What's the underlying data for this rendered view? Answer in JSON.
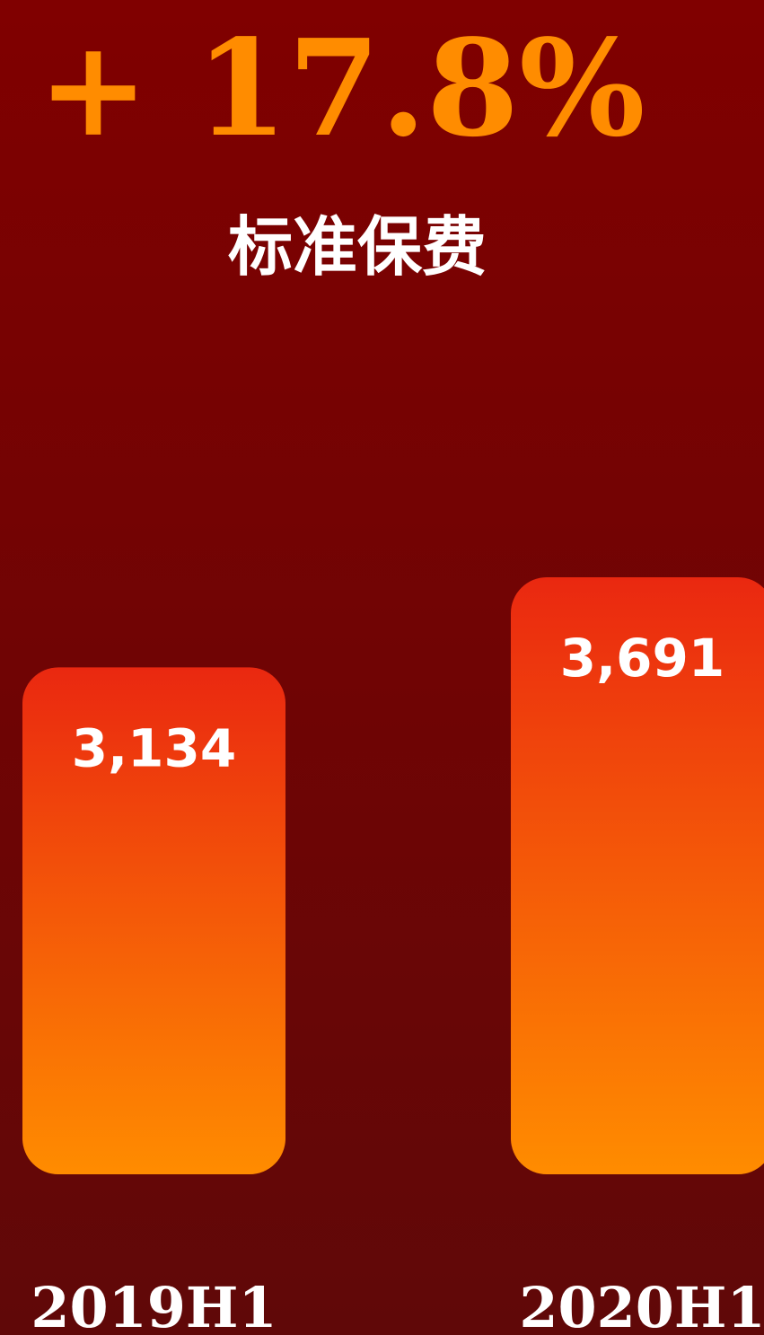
{
  "chart_data": {
    "type": "bar",
    "headline": "+ 17.8%",
    "title": "标准保费",
    "categories": [
      "2019H1",
      "2020H1"
    ],
    "values": [
      3134,
      3691
    ],
    "value_labels": [
      "3,134",
      "3,691"
    ],
    "ylim": [
      0,
      4000
    ],
    "grid": false,
    "legend": "none"
  },
  "colors": {
    "background_top": "#800000",
    "background_bottom": "#600808",
    "headline": "#ff8c00",
    "text": "#ffffff",
    "bar_top": "#ea2810",
    "bar_bottom": "#ff8c00"
  }
}
